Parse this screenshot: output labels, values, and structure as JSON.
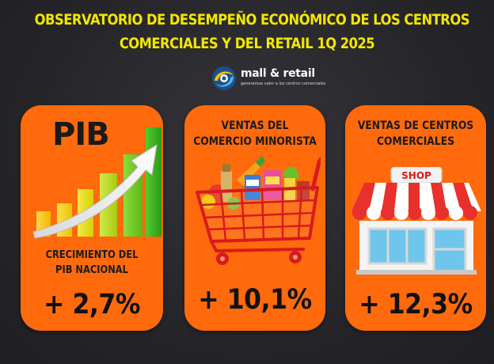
{
  "title": {
    "line1": "OBSERVATORIO DE DESEMPEÑO  ECONÓMICO DE LOS CENTROS",
    "line2": "COMERCIALES Y DEL RETAIL 1Q 2025"
  },
  "logo": {
    "name": "mall & retail",
    "tagline": "generamos valor a los centros comerciales",
    "icon": "swirl-logo-icon"
  },
  "colors": {
    "background": "#2a2a2e",
    "title": "#f4e600",
    "card": "#ff6a0d",
    "text": "#1a1a1a"
  },
  "cards": [
    {
      "heading": "PIB",
      "subtitle_line1": "CRECIMIENTO  DEL",
      "subtitle_line2": "PIB NACIONAL",
      "value": "+ 2,7%",
      "icon": "growth-bar-chart-icon"
    },
    {
      "title_line1": "VENTAS DEL",
      "title_line2": "COMERCIO MINORISTA",
      "value": "+ 10,1%",
      "icon": "shopping-cart-icon"
    },
    {
      "title_line1": "VENTAS DE CENTROS",
      "title_line2": "COMERCIALES",
      "value": "+ 12,3%",
      "icon": "storefront-icon",
      "sign_text": "SHOP"
    }
  ]
}
